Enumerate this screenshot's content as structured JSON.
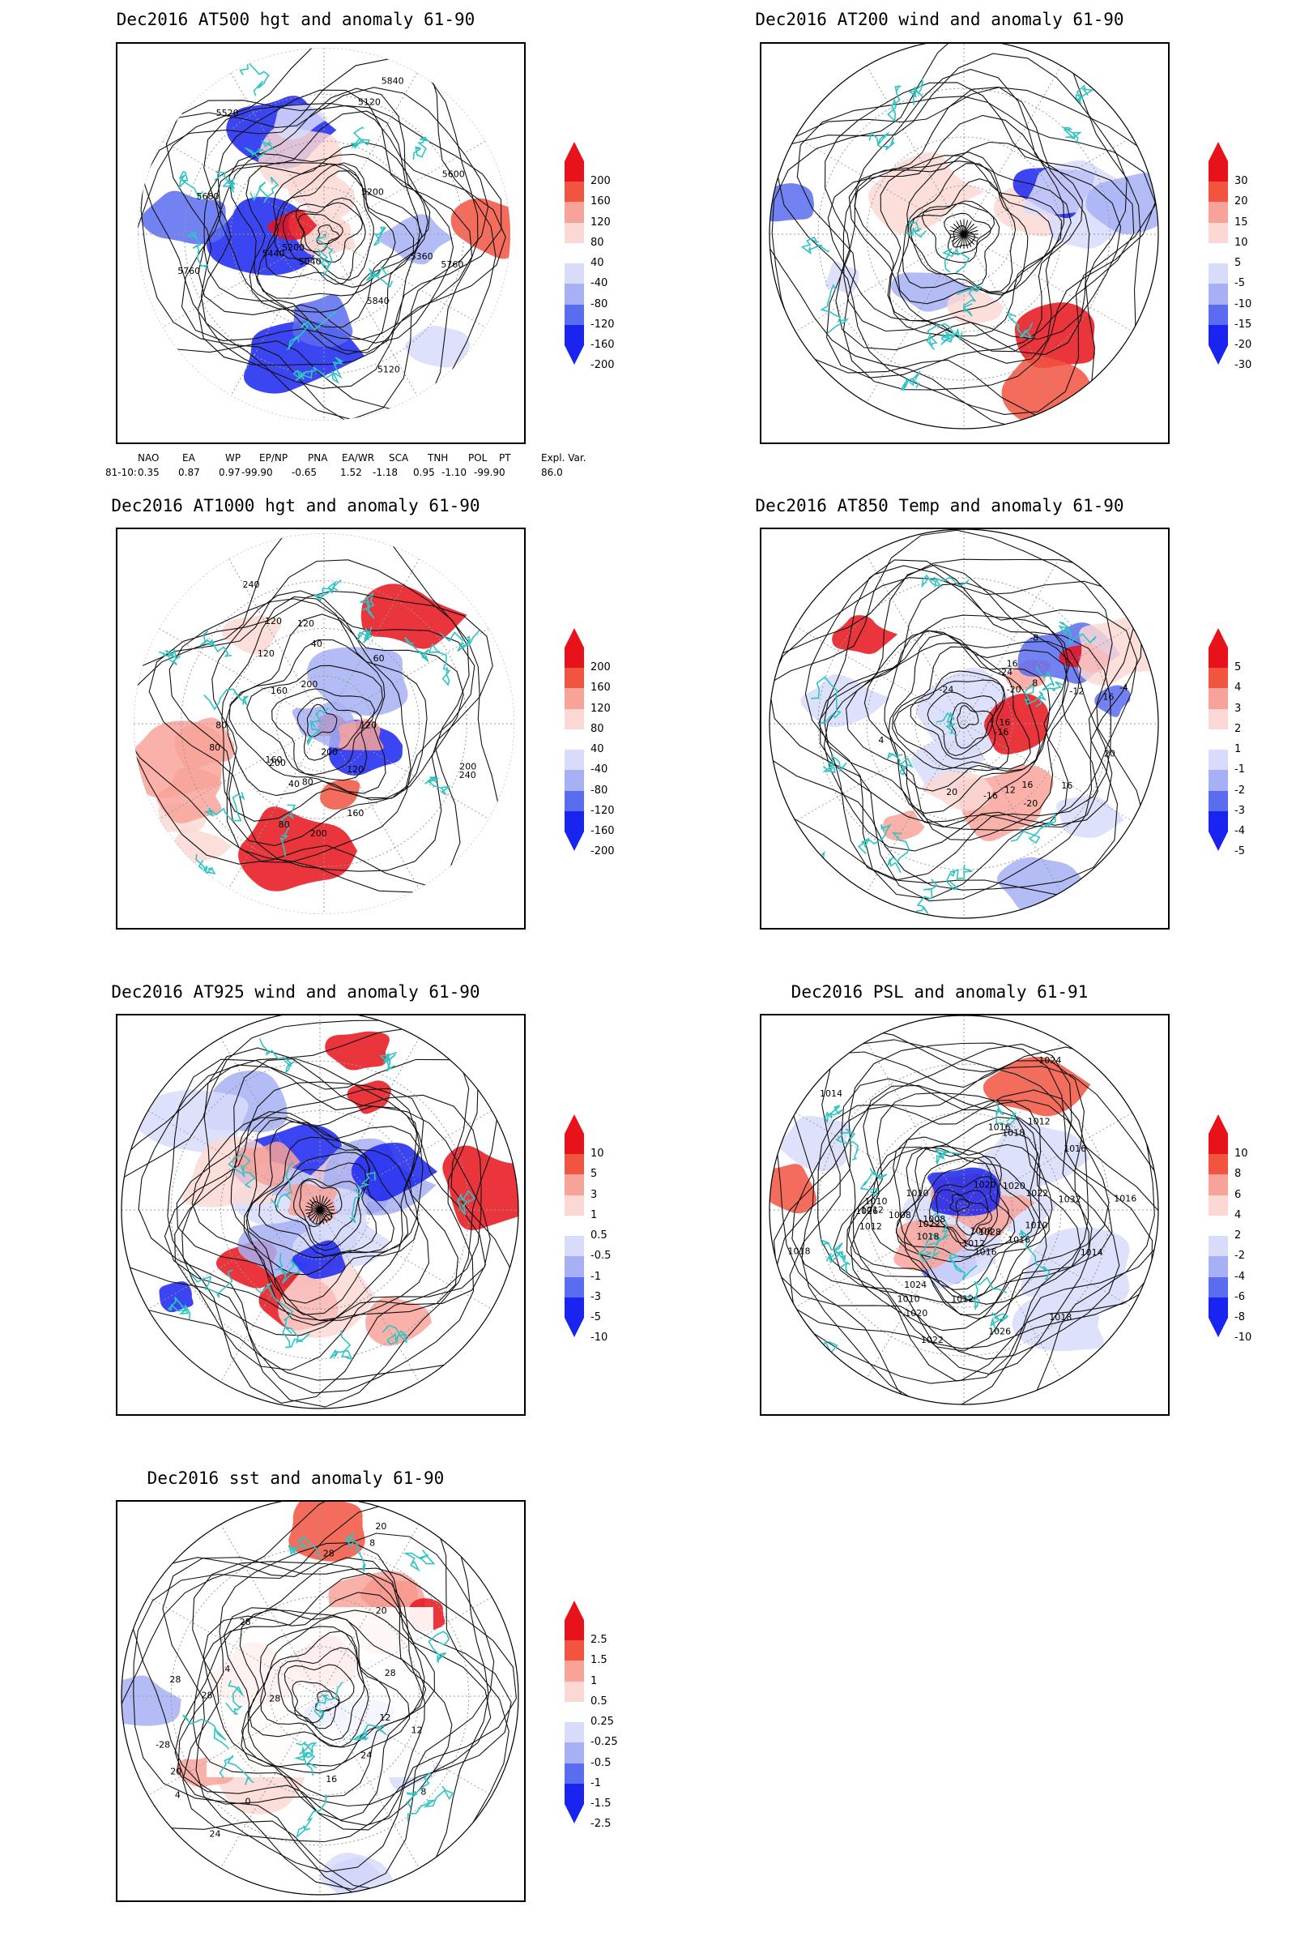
{
  "palette": {
    "cyan_coast": "#2ec4c4",
    "red_strong": "#e8121a",
    "red_mid": "#f2543f",
    "red_light": "#f8a39a",
    "red_pale": "#fcd8d4",
    "blue_pale": "#d8dcfa",
    "blue_light": "#a7b0f4",
    "blue_mid": "#5a6cf0",
    "blue_strong": "#1a24f0"
  },
  "panels": [
    {
      "id": "p1",
      "title": "Dec2016 AT500 hgt and anomaly 61-90",
      "colorbar_labels": [
        "200",
        "160",
        "120",
        "80",
        "40",
        "-40",
        "-80",
        "-120",
        "-160",
        "-200"
      ],
      "contour_labels": [
        "5840",
        "5200",
        "5120",
        "5040",
        "5120",
        "5200",
        "5760",
        "5360",
        "5440",
        "5520",
        "5600",
        "5680",
        "5760",
        "5840"
      ]
    },
    {
      "id": "p2",
      "title": "Dec2016 AT200 wind and anomaly 61-90",
      "colorbar_labels": [
        "30",
        "20",
        "15",
        "10",
        "5",
        "-5",
        "-10",
        "-15",
        "-20",
        "-30"
      ],
      "contour_labels": []
    },
    {
      "id": "p3",
      "title": "Dec2016 AT1000 hgt and anomaly 61-90",
      "colorbar_labels": [
        "200",
        "160",
        "120",
        "80",
        "40",
        "-40",
        "-80",
        "-120",
        "-160",
        "-200"
      ],
      "contour_labels": [
        "80",
        "160",
        "200",
        "200",
        "80",
        "120",
        "40",
        "40",
        "80",
        "120",
        "240",
        "200",
        "200",
        "160",
        "160",
        "120",
        "120",
        "80",
        "60",
        "120",
        "200",
        "240"
      ]
    },
    {
      "id": "p4",
      "title": "Dec2016 AT850 Temp and anomaly 61-90",
      "colorbar_labels": [
        "5",
        "4",
        "3",
        "2",
        "1",
        "-1",
        "-2",
        "-3",
        "-4",
        "-5"
      ],
      "contour_labels": [
        "16",
        "12",
        "16",
        "16",
        "-8",
        "-4",
        "-16",
        "-24",
        "-20",
        "-12",
        "-20",
        "-24",
        "-16",
        "8",
        "4",
        "16",
        "20",
        "20",
        "16"
      ]
    },
    {
      "id": "p5",
      "title": "Dec2016 AT925 wind and anomaly 61-90",
      "colorbar_labels": [
        "10",
        "5",
        "3",
        "1",
        "0.5",
        "-0.5",
        "-1",
        "-3",
        "-5",
        "-10"
      ],
      "contour_labels": []
    },
    {
      "id": "p6",
      "title": "Dec2016 PSL and anomaly 61-91",
      "colorbar_labels": [
        "10",
        "8",
        "6",
        "4",
        "2",
        "-2",
        "-4",
        "-6",
        "-8",
        "-10"
      ],
      "contour_labels": [
        "1008",
        "1010",
        "1012",
        "1016",
        "1018",
        "1020",
        "1022",
        "1024",
        "1008",
        "1012",
        "1016",
        "1018",
        "1032",
        "1028",
        "1026",
        "1016",
        "1016",
        "1014",
        "1012",
        "1010",
        "1024",
        "1022",
        "1020",
        "1018",
        "1014",
        "1012",
        "1010",
        "1012",
        "1016",
        "1018",
        "1020",
        "1022",
        "1026",
        "1008",
        "1010"
      ]
    },
    {
      "id": "p7",
      "title": "Dec2016 sst and anomaly 61-90",
      "colorbar_labels": [
        "2.5",
        "1.5",
        "1",
        "0.5",
        "0.25",
        "-0.25",
        "-0.5",
        "-1",
        "-1.5",
        "-2.5"
      ],
      "contour_labels": [
        "-28",
        "28",
        "24",
        "24",
        "20",
        "16",
        "12",
        "8",
        "4",
        "28",
        "28",
        "28",
        "20",
        "12",
        "8",
        "4",
        "0",
        "20",
        "28",
        "28"
      ]
    }
  ],
  "indices": {
    "headers": [
      "NAO",
      "EA",
      "WP",
      "EP/NP",
      "PNA",
      "EA/WR",
      "SCA",
      "TNH",
      "POL",
      "PT",
      "Expl. Var."
    ],
    "row_label": "81-10:",
    "values": [
      "0.35",
      "0.87",
      "0.97",
      "-99.90",
      "-0.65",
      "1.52",
      "-1.18",
      "0.95",
      "-1.10",
      "-99.90",
      "86.0"
    ]
  }
}
